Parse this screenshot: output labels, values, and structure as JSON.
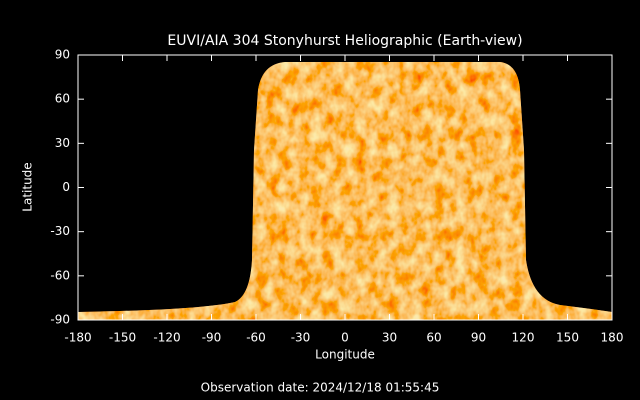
{
  "chart_data": {
    "type": "image",
    "title": "EUVI/AIA 304 Stonyhurst Heliographic (Earth-view)",
    "xlabel": "Longitude",
    "ylabel": "Latitude",
    "xlim": [
      -180,
      180
    ],
    "ylim": [
      -90,
      90
    ],
    "xticks": [
      -180,
      -150,
      -120,
      -90,
      -60,
      -30,
      0,
      30,
      60,
      90,
      120,
      150,
      180
    ],
    "yticks": [
      -90,
      -60,
      -30,
      0,
      30,
      60,
      90
    ],
    "caption": "Observation date: 2024/12/18 01:55:45"
  }
}
